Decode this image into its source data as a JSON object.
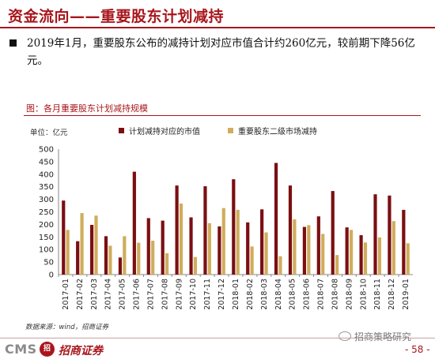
{
  "header": {
    "title": "资金流向——重要股东计划减持"
  },
  "summary": {
    "text": "2019年1月，重要股东公布的减持计划对应市值合计约260亿元，较前期下降56亿元。"
  },
  "panel": {
    "title": "图：各月重要股东计划减持规模"
  },
  "chart_data": {
    "type": "bar",
    "unit_label": "单位：亿元",
    "categories": [
      "2017-01",
      "2017-02",
      "2017-03",
      "2017-04",
      "2017-05",
      "2017-06",
      "2017-07",
      "2017-08",
      "2017-09",
      "2017-10",
      "2017-11",
      "2017-12",
      "2018-01",
      "2018-02",
      "2018-03",
      "2018-04",
      "2018-05",
      "2018-06",
      "2018-07",
      "2018-08",
      "2018-09",
      "2018-10",
      "2018-11",
      "2018-12",
      "2019-01"
    ],
    "series": [
      {
        "name": "计划减持对应的市值",
        "color": "#7b0f12",
        "values": [
          295,
          133,
          198,
          153,
          68,
          410,
          225,
          215,
          355,
          228,
          352,
          192,
          380,
          208,
          260,
          445,
          355,
          190,
          232,
          333,
          188,
          157,
          320,
          315,
          258
        ]
      },
      {
        "name": "重要股东二级市场减持",
        "color": "#d0ad5c",
        "values": [
          178,
          245,
          235,
          115,
          153,
          127,
          135,
          85,
          283,
          70,
          205,
          265,
          258,
          112,
          168,
          73,
          220,
          197,
          162,
          78,
          178,
          128,
          148,
          213,
          125
        ]
      }
    ],
    "ylim": [
      0,
      500
    ],
    "yticks": [
      0,
      50,
      100,
      150,
      200,
      250,
      300,
      350,
      400,
      450,
      500
    ],
    "grid": false,
    "legend": "top"
  },
  "footer": {
    "source": "数据来源：wind，招商证券",
    "logo_cms": "CMS",
    "logo_mark": "招",
    "logo_name": "招商证券",
    "watermark": "招商策略研究",
    "page": "- 58 -"
  }
}
